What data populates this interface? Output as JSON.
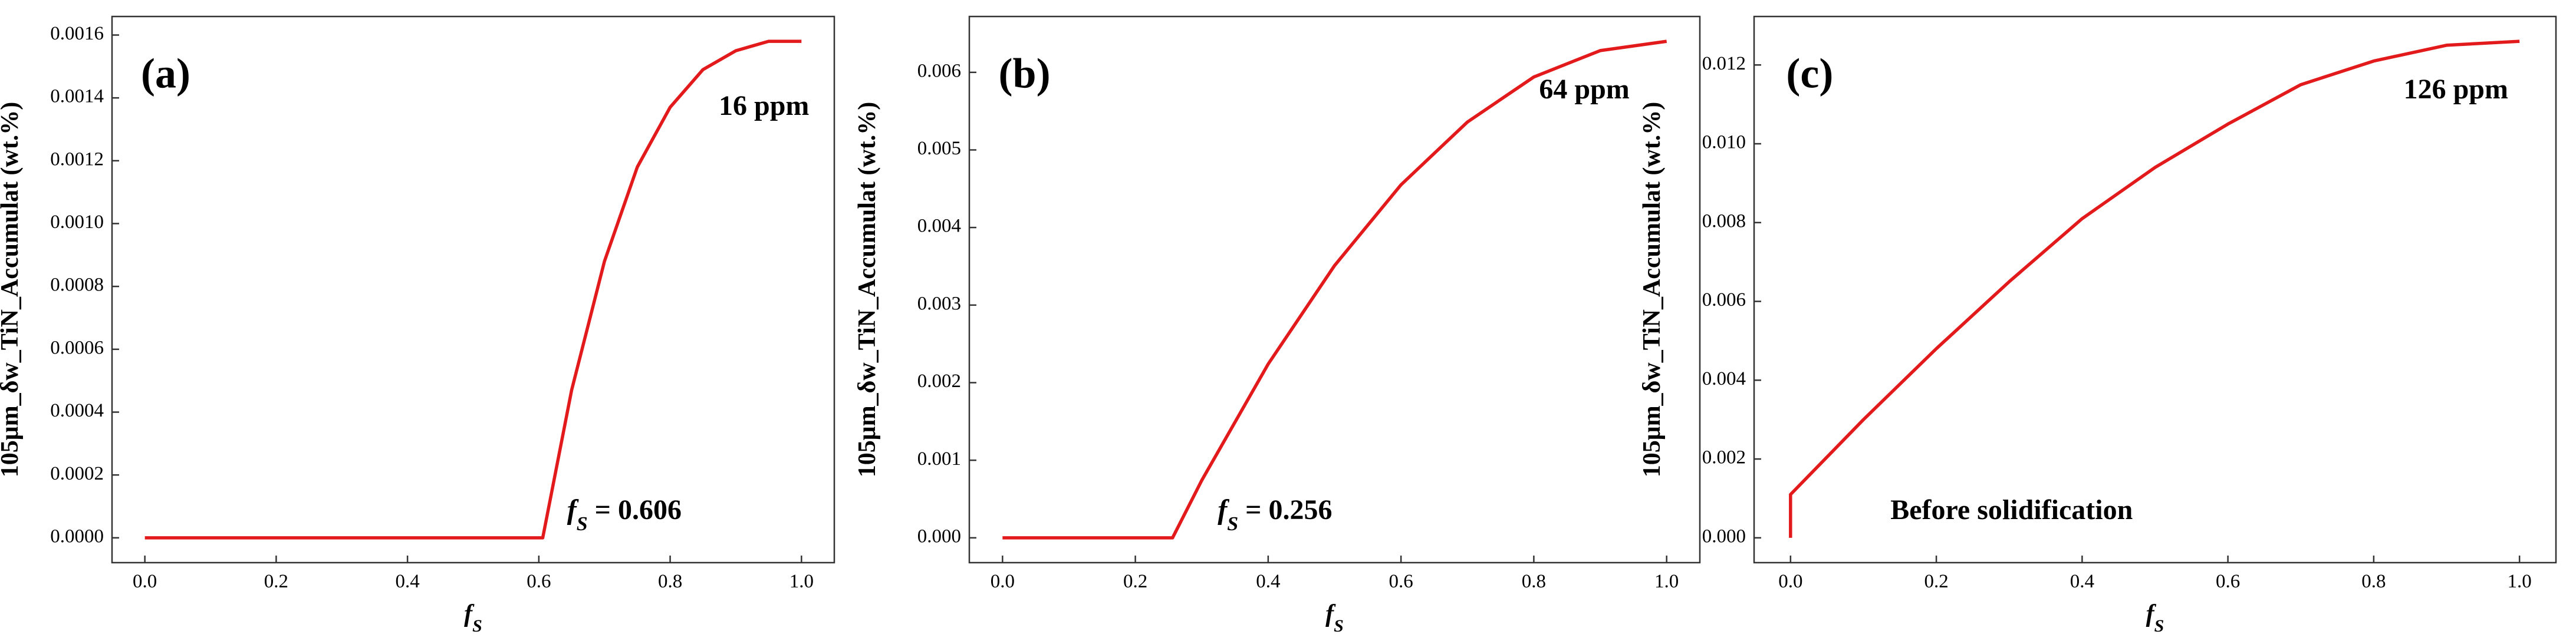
{
  "chart_data": [
    {
      "type": "line",
      "ylabel": "105μm_δw_TiN_Accumulat (wt.%)",
      "xlabel": {
        "symbol": "f",
        "sub": "S"
      },
      "x": [
        0.0,
        0.606,
        0.65,
        0.7,
        0.75,
        0.8,
        0.85,
        0.9,
        0.95,
        1.0
      ],
      "series": [
        {
          "color": "#e31a1c",
          "values": [
            0,
            0,
            0.00047,
            0.00088,
            0.00118,
            0.00137,
            0.00149,
            0.00155,
            0.00158,
            0.00158
          ]
        }
      ],
      "xlim": [
        -0.05,
        1.05
      ],
      "xticks": [
        {
          "value": 0,
          "label": "0.0"
        },
        0.2,
        0.4,
        0.6,
        0.8,
        {
          "value": 1,
          "label": "1.0"
        }
      ],
      "ylim": [
        -7.9e-05,
        0.001659
      ],
      "yticks": [
        {
          "value": 0,
          "label": "0.0000"
        },
        {
          "value": 0.0002,
          "label": "0.0002"
        },
        {
          "value": 0.0004,
          "label": "0.0004"
        },
        {
          "value": 0.0006,
          "label": "0.0006"
        },
        {
          "value": 0.0008,
          "label": "0.0008"
        },
        {
          "value": 0.001,
          "label": "0.0010"
        },
        {
          "value": 0.0012,
          "label": "0.0012"
        },
        {
          "value": 0.0014,
          "label": "0.0014"
        },
        {
          "value": 0.0016,
          "label": "0.0016"
        }
      ],
      "annotations": [
        {
          "text": "(a)"
        },
        {
          "text": "16 ppm"
        },
        {
          "symbol": "f",
          "sub": "S",
          "text": "= 0.606"
        }
      ]
    },
    {
      "type": "line",
      "ylabel": "105μm_δw_TiN_Accumulat (wt.%)",
      "xlabel": {
        "symbol": "f",
        "sub": "S"
      },
      "x": [
        0.0,
        0.256,
        0.3,
        0.4,
        0.5,
        0.6,
        0.7,
        0.8,
        0.9,
        1.0
      ],
      "series": [
        {
          "color": "#e31a1c",
          "values": [
            0,
            0,
            0.00074,
            0.00224,
            0.00351,
            0.00455,
            0.00536,
            0.00594,
            0.00628,
            0.0064
          ]
        }
      ],
      "xlim": [
        -0.05,
        1.05
      ],
      "xticks": [
        {
          "value": 0,
          "label": "0.0"
        },
        0.2,
        0.4,
        0.6,
        0.8,
        {
          "value": 1,
          "label": "1.0"
        }
      ],
      "ylim": [
        -0.00032,
        0.00672
      ],
      "yticks": [
        {
          "value": 0,
          "label": "0.000"
        },
        0.001,
        0.002,
        0.003,
        0.004,
        0.005,
        0.006
      ],
      "annotations": [
        {
          "text": "(b)"
        },
        {
          "text": "64 ppm"
        },
        {
          "symbol": "f",
          "sub": "S",
          "text": "= 0.256"
        }
      ]
    },
    {
      "type": "line",
      "ylabel": "105μm_δw_TiN_Accumulat (wt.%)",
      "xlabel": {
        "symbol": "f",
        "sub": "S"
      },
      "x": [
        0.0,
        0.0,
        0.1,
        0.2,
        0.3,
        0.4,
        0.5,
        0.6,
        0.7,
        0.8,
        0.9,
        1.0
      ],
      "series": [
        {
          "color": "#e31a1c",
          "values": [
            0,
            0.0011,
            0.003,
            0.0048,
            0.0065,
            0.0081,
            0.0094,
            0.0105,
            0.0115,
            0.0121,
            0.0125,
            0.0126
          ]
        }
      ],
      "xlim": [
        -0.05,
        1.05
      ],
      "xticks": [
        {
          "value": 0,
          "label": "0.0"
        },
        0.2,
        0.4,
        0.6,
        0.8,
        {
          "value": 1,
          "label": "1.0"
        }
      ],
      "ylim": [
        -0.00063,
        0.01323
      ],
      "yticks": [
        {
          "value": 0,
          "label": "0.000"
        },
        0.002,
        0.004,
        0.006,
        0.008,
        {
          "value": 0.01,
          "label": "0.010"
        },
        0.012
      ],
      "annotations": [
        {
          "text": "(c)"
        },
        {
          "text": "126 ppm"
        },
        {
          "text": "Before solidification"
        }
      ]
    }
  ]
}
